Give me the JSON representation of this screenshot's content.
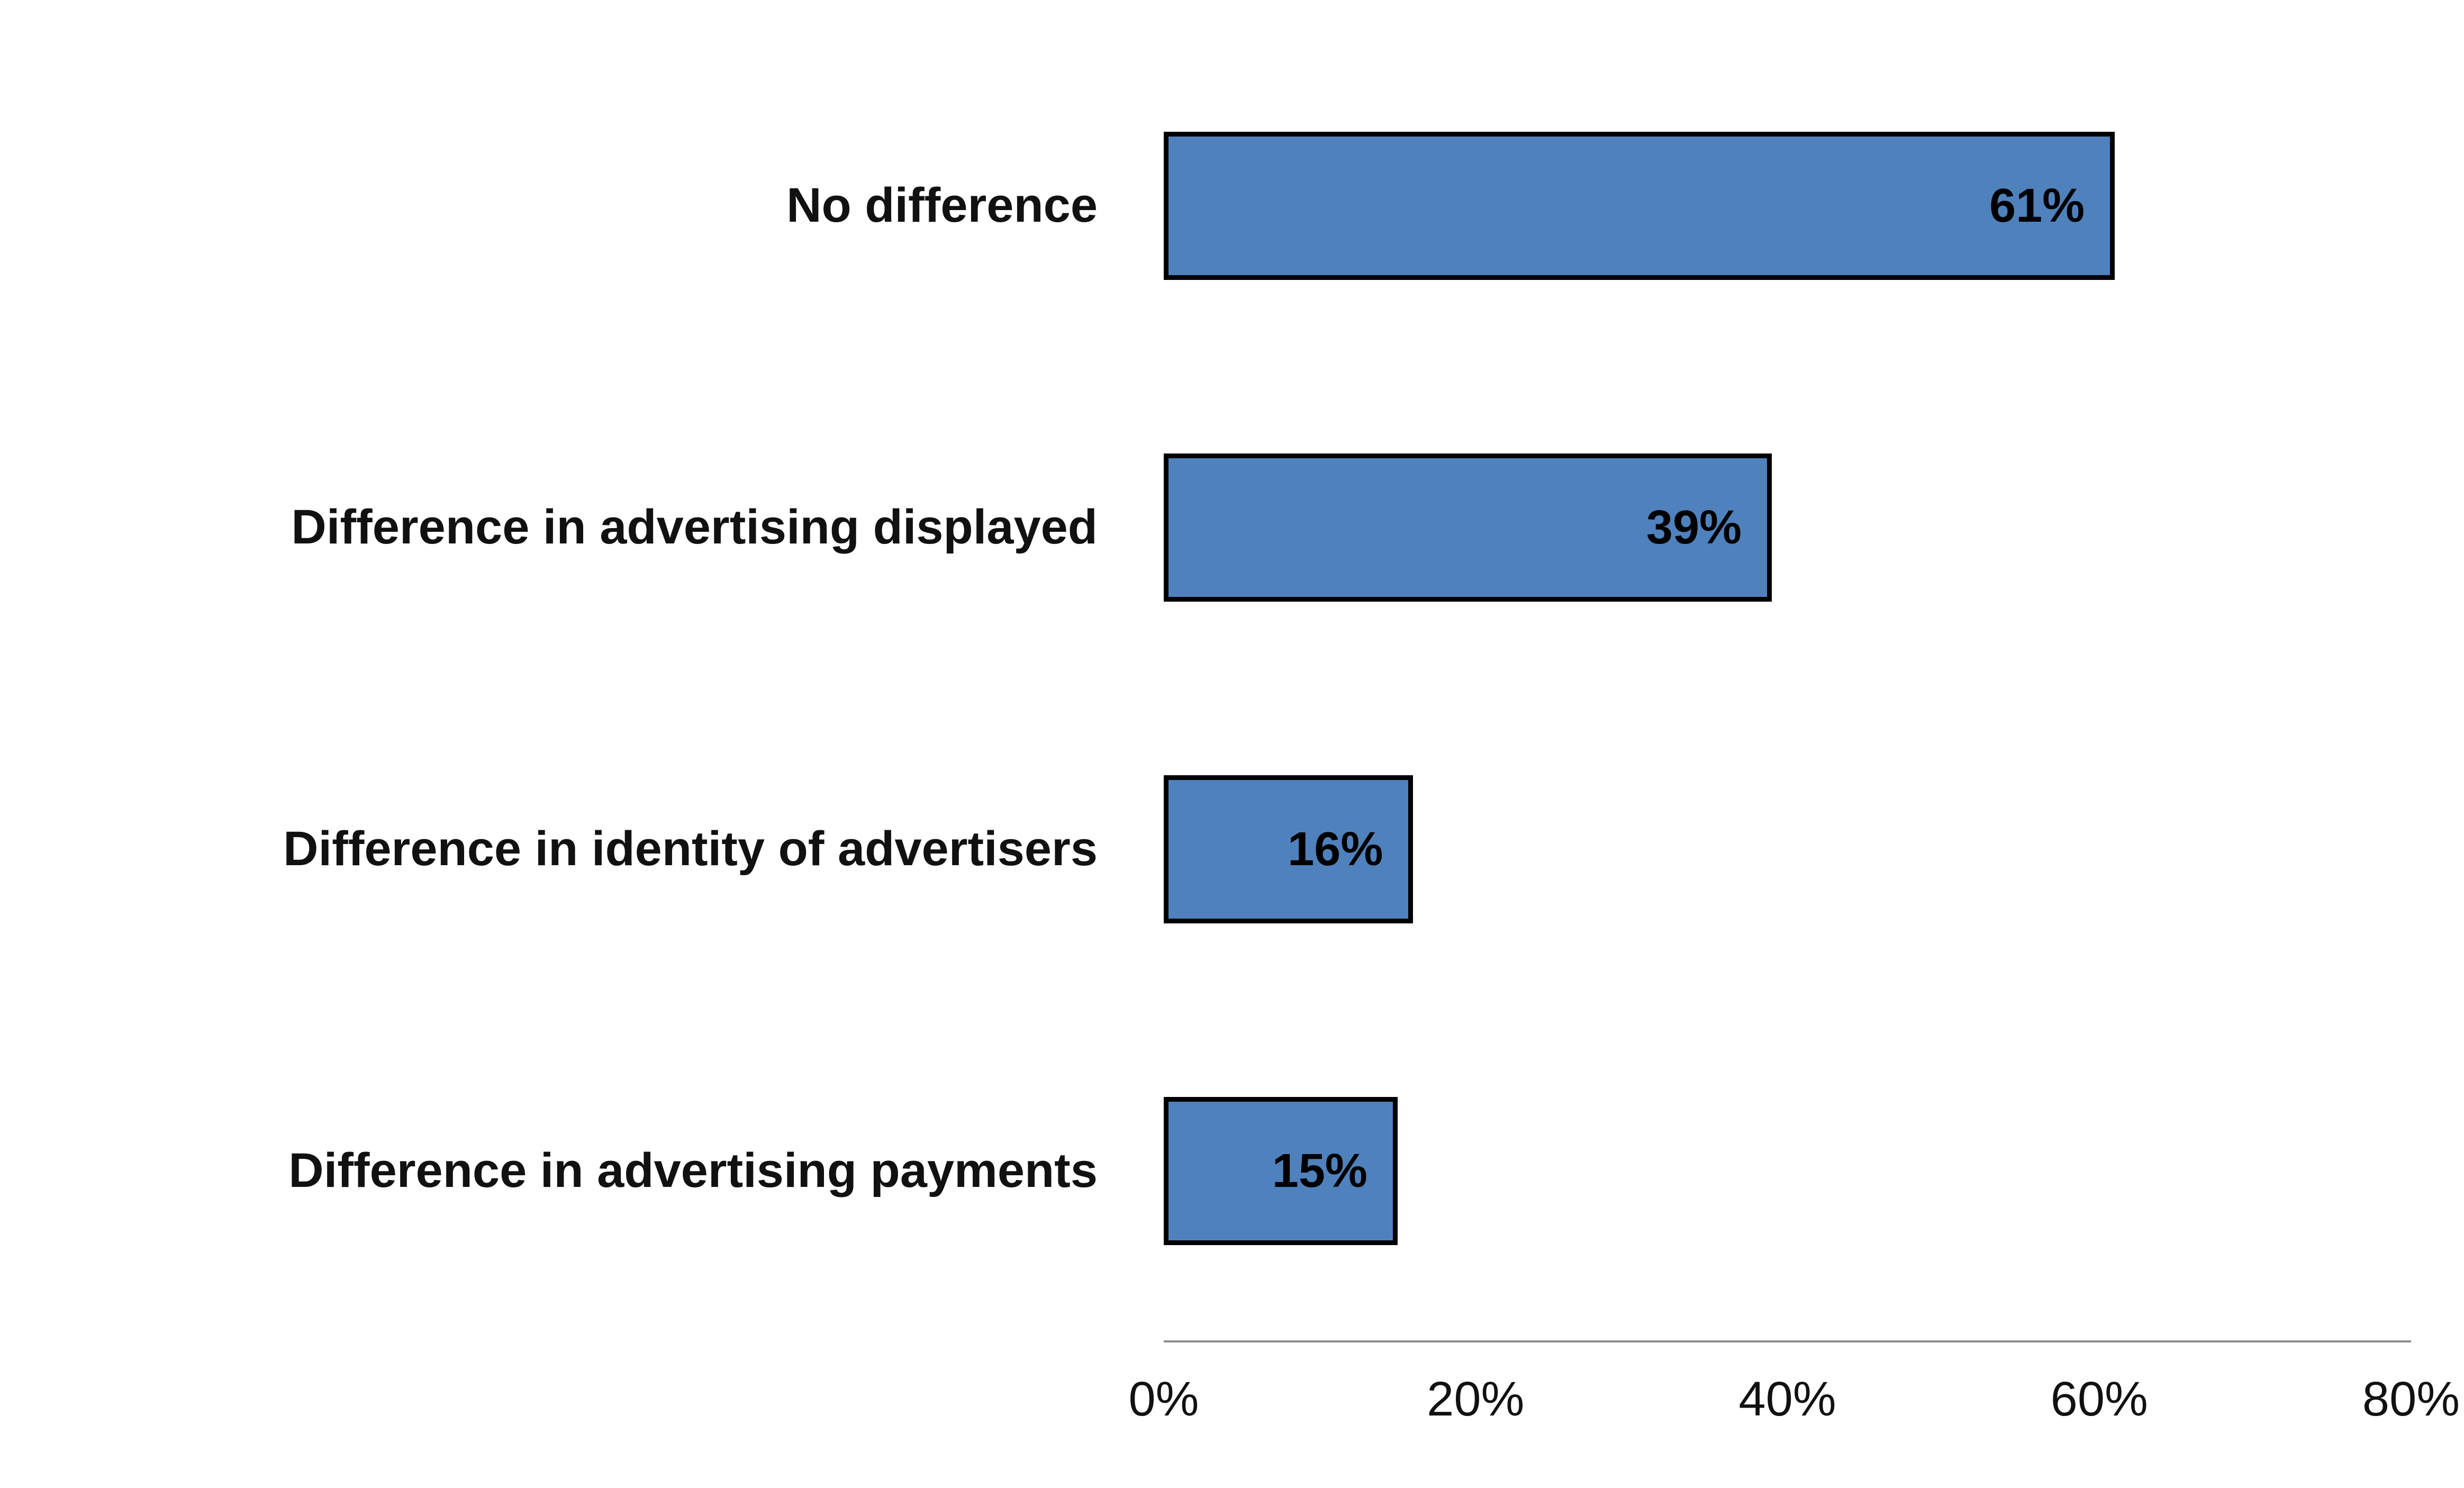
{
  "chart_data": {
    "type": "bar",
    "orientation": "horizontal",
    "title": "",
    "xlabel": "",
    "ylabel": "",
    "categories": [
      "No difference",
      "Difference in advertising displayed",
      "Difference in identity of advertisers",
      "Difference in advertising payments"
    ],
    "values": [
      61,
      39,
      16,
      15
    ],
    "value_labels": [
      "61%",
      "39%",
      "16%",
      "15%"
    ],
    "xlim": [
      0,
      80
    ],
    "x_tick_values": [
      0,
      20,
      40,
      60,
      80
    ],
    "x_tick_labels": [
      "0%",
      "20%",
      "40%",
      "60%",
      "80%"
    ],
    "grid": false,
    "legend": false,
    "bar_color": "#4f81bd",
    "bar_border_color": "#000000",
    "axis_line_color": "#8c8c8c",
    "text_color": "#111111"
  }
}
